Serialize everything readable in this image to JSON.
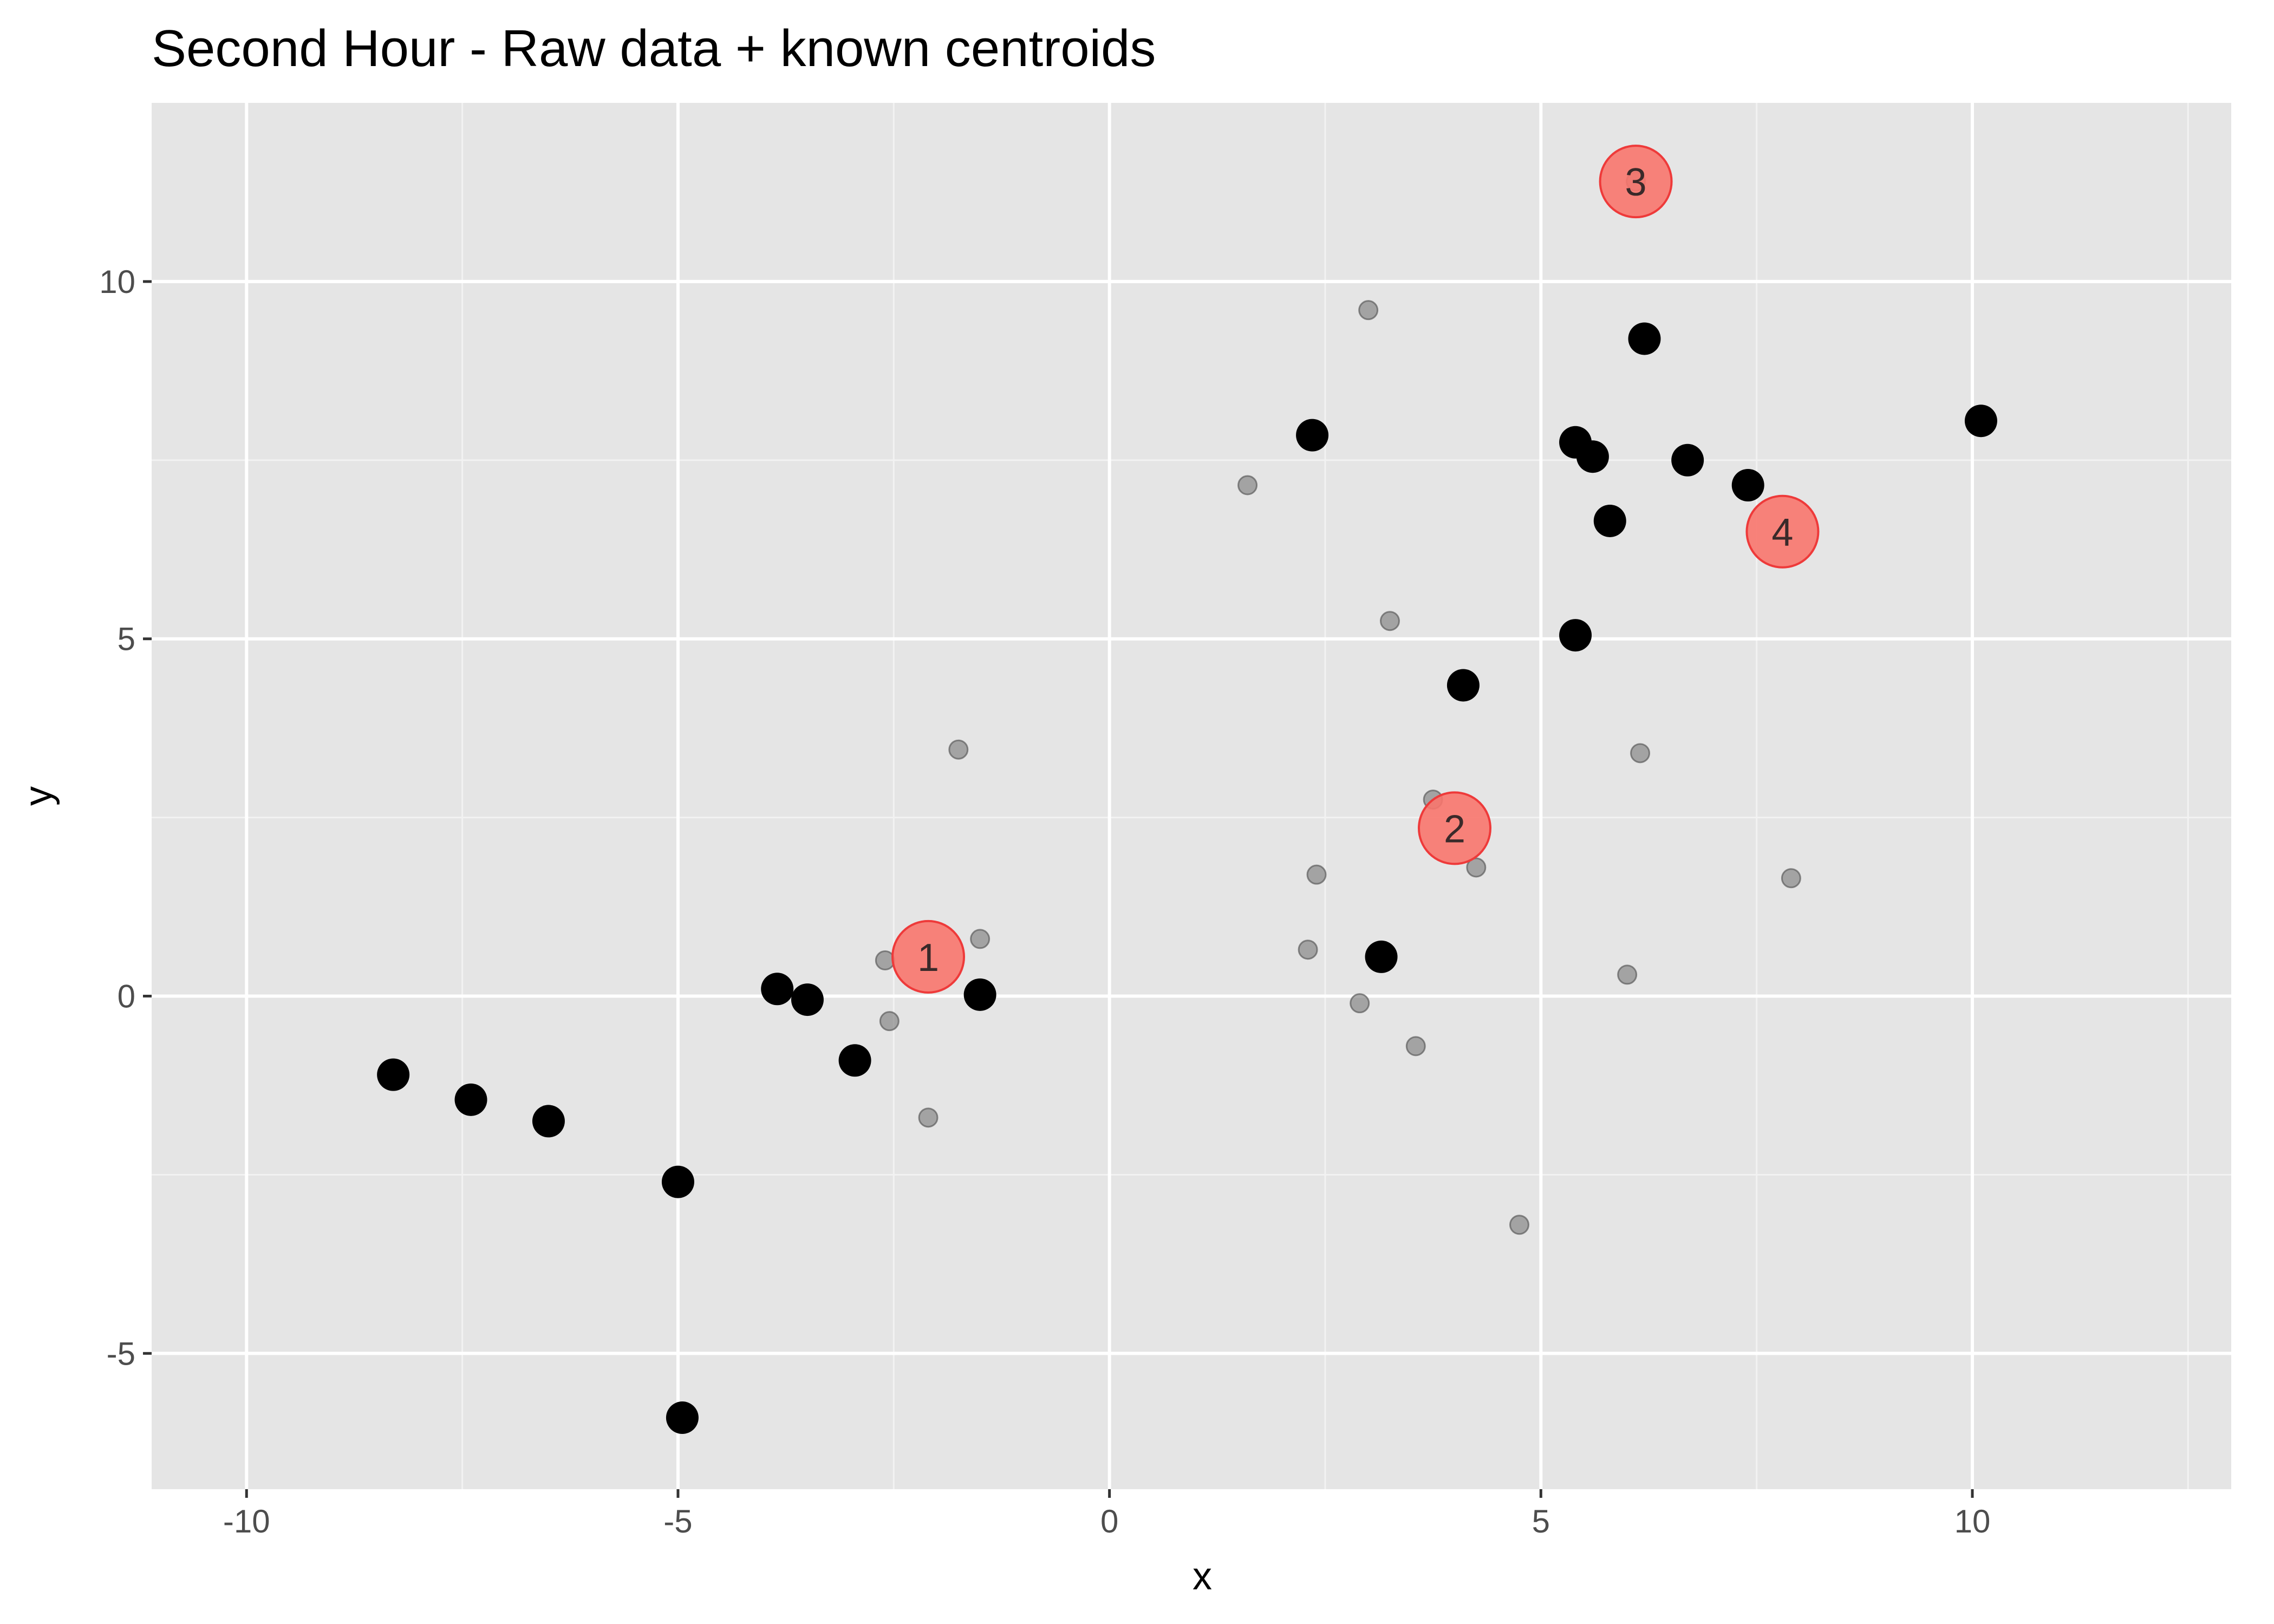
{
  "chart_data": {
    "type": "scatter",
    "title": "Second Hour - Raw data + known centroids",
    "xlabel": "x",
    "ylabel": "y",
    "xlim": [
      -11.1,
      13.0
    ],
    "ylim": [
      -6.9,
      12.5
    ],
    "xticks": [
      -10,
      -5,
      0,
      5,
      10
    ],
    "yticks": [
      -5,
      0,
      5,
      10
    ],
    "xtick_labels": [
      "-10",
      "-5",
      "0",
      "5",
      "10"
    ],
    "ytick_labels": [
      "-5",
      "0",
      "5",
      "10"
    ],
    "grid": true,
    "legend": "none",
    "panel_color": "#e5e5e5",
    "series": [
      {
        "style": "large black points",
        "color": "#000000",
        "points": [
          [
            -8.3,
            -1.1
          ],
          [
            -7.4,
            -1.45
          ],
          [
            -6.5,
            -1.75
          ],
          [
            -5.0,
            -2.6
          ],
          [
            -4.95,
            -5.9
          ],
          [
            -3.85,
            0.1
          ],
          [
            -3.5,
            -0.05
          ],
          [
            -2.95,
            -0.9
          ],
          [
            -1.5,
            0.02
          ],
          [
            2.35,
            7.85
          ],
          [
            3.15,
            0.55
          ],
          [
            4.1,
            4.35
          ],
          [
            5.4,
            5.05
          ],
          [
            5.4,
            7.75
          ],
          [
            5.6,
            7.55
          ],
          [
            5.8,
            6.65
          ],
          [
            6.2,
            9.2
          ],
          [
            6.7,
            7.5
          ],
          [
            7.4,
            7.15
          ],
          [
            10.1,
            8.05
          ]
        ]
      },
      {
        "style": "small translucent grey points",
        "color": "#7f7f7f",
        "points": [
          [
            -1.75,
            3.45
          ],
          [
            -1.5,
            0.8
          ],
          [
            -2.6,
            0.5
          ],
          [
            -2.55,
            -0.35
          ],
          [
            -2.1,
            -1.7
          ],
          [
            1.6,
            7.15
          ],
          [
            2.3,
            0.65
          ],
          [
            2.4,
            1.7
          ],
          [
            2.9,
            -0.1
          ],
          [
            3.0,
            9.6
          ],
          [
            3.25,
            5.25
          ],
          [
            3.55,
            -0.7
          ],
          [
            3.75,
            2.75
          ],
          [
            4.25,
            1.8
          ],
          [
            4.75,
            -3.2
          ],
          [
            6.0,
            0.3
          ],
          [
            6.15,
            3.4
          ],
          [
            6.1,
            11.4
          ],
          [
            7.9,
            1.65
          ]
        ]
      }
    ],
    "centroids": {
      "color": "#f8766d",
      "points": [
        {
          "label": "1",
          "x": -2.1,
          "y": 0.55
        },
        {
          "label": "2",
          "x": 4.0,
          "y": 2.35
        },
        {
          "label": "3",
          "x": 6.1,
          "y": 11.4
        },
        {
          "label": "4",
          "x": 7.8,
          "y": 6.5
        }
      ]
    }
  }
}
